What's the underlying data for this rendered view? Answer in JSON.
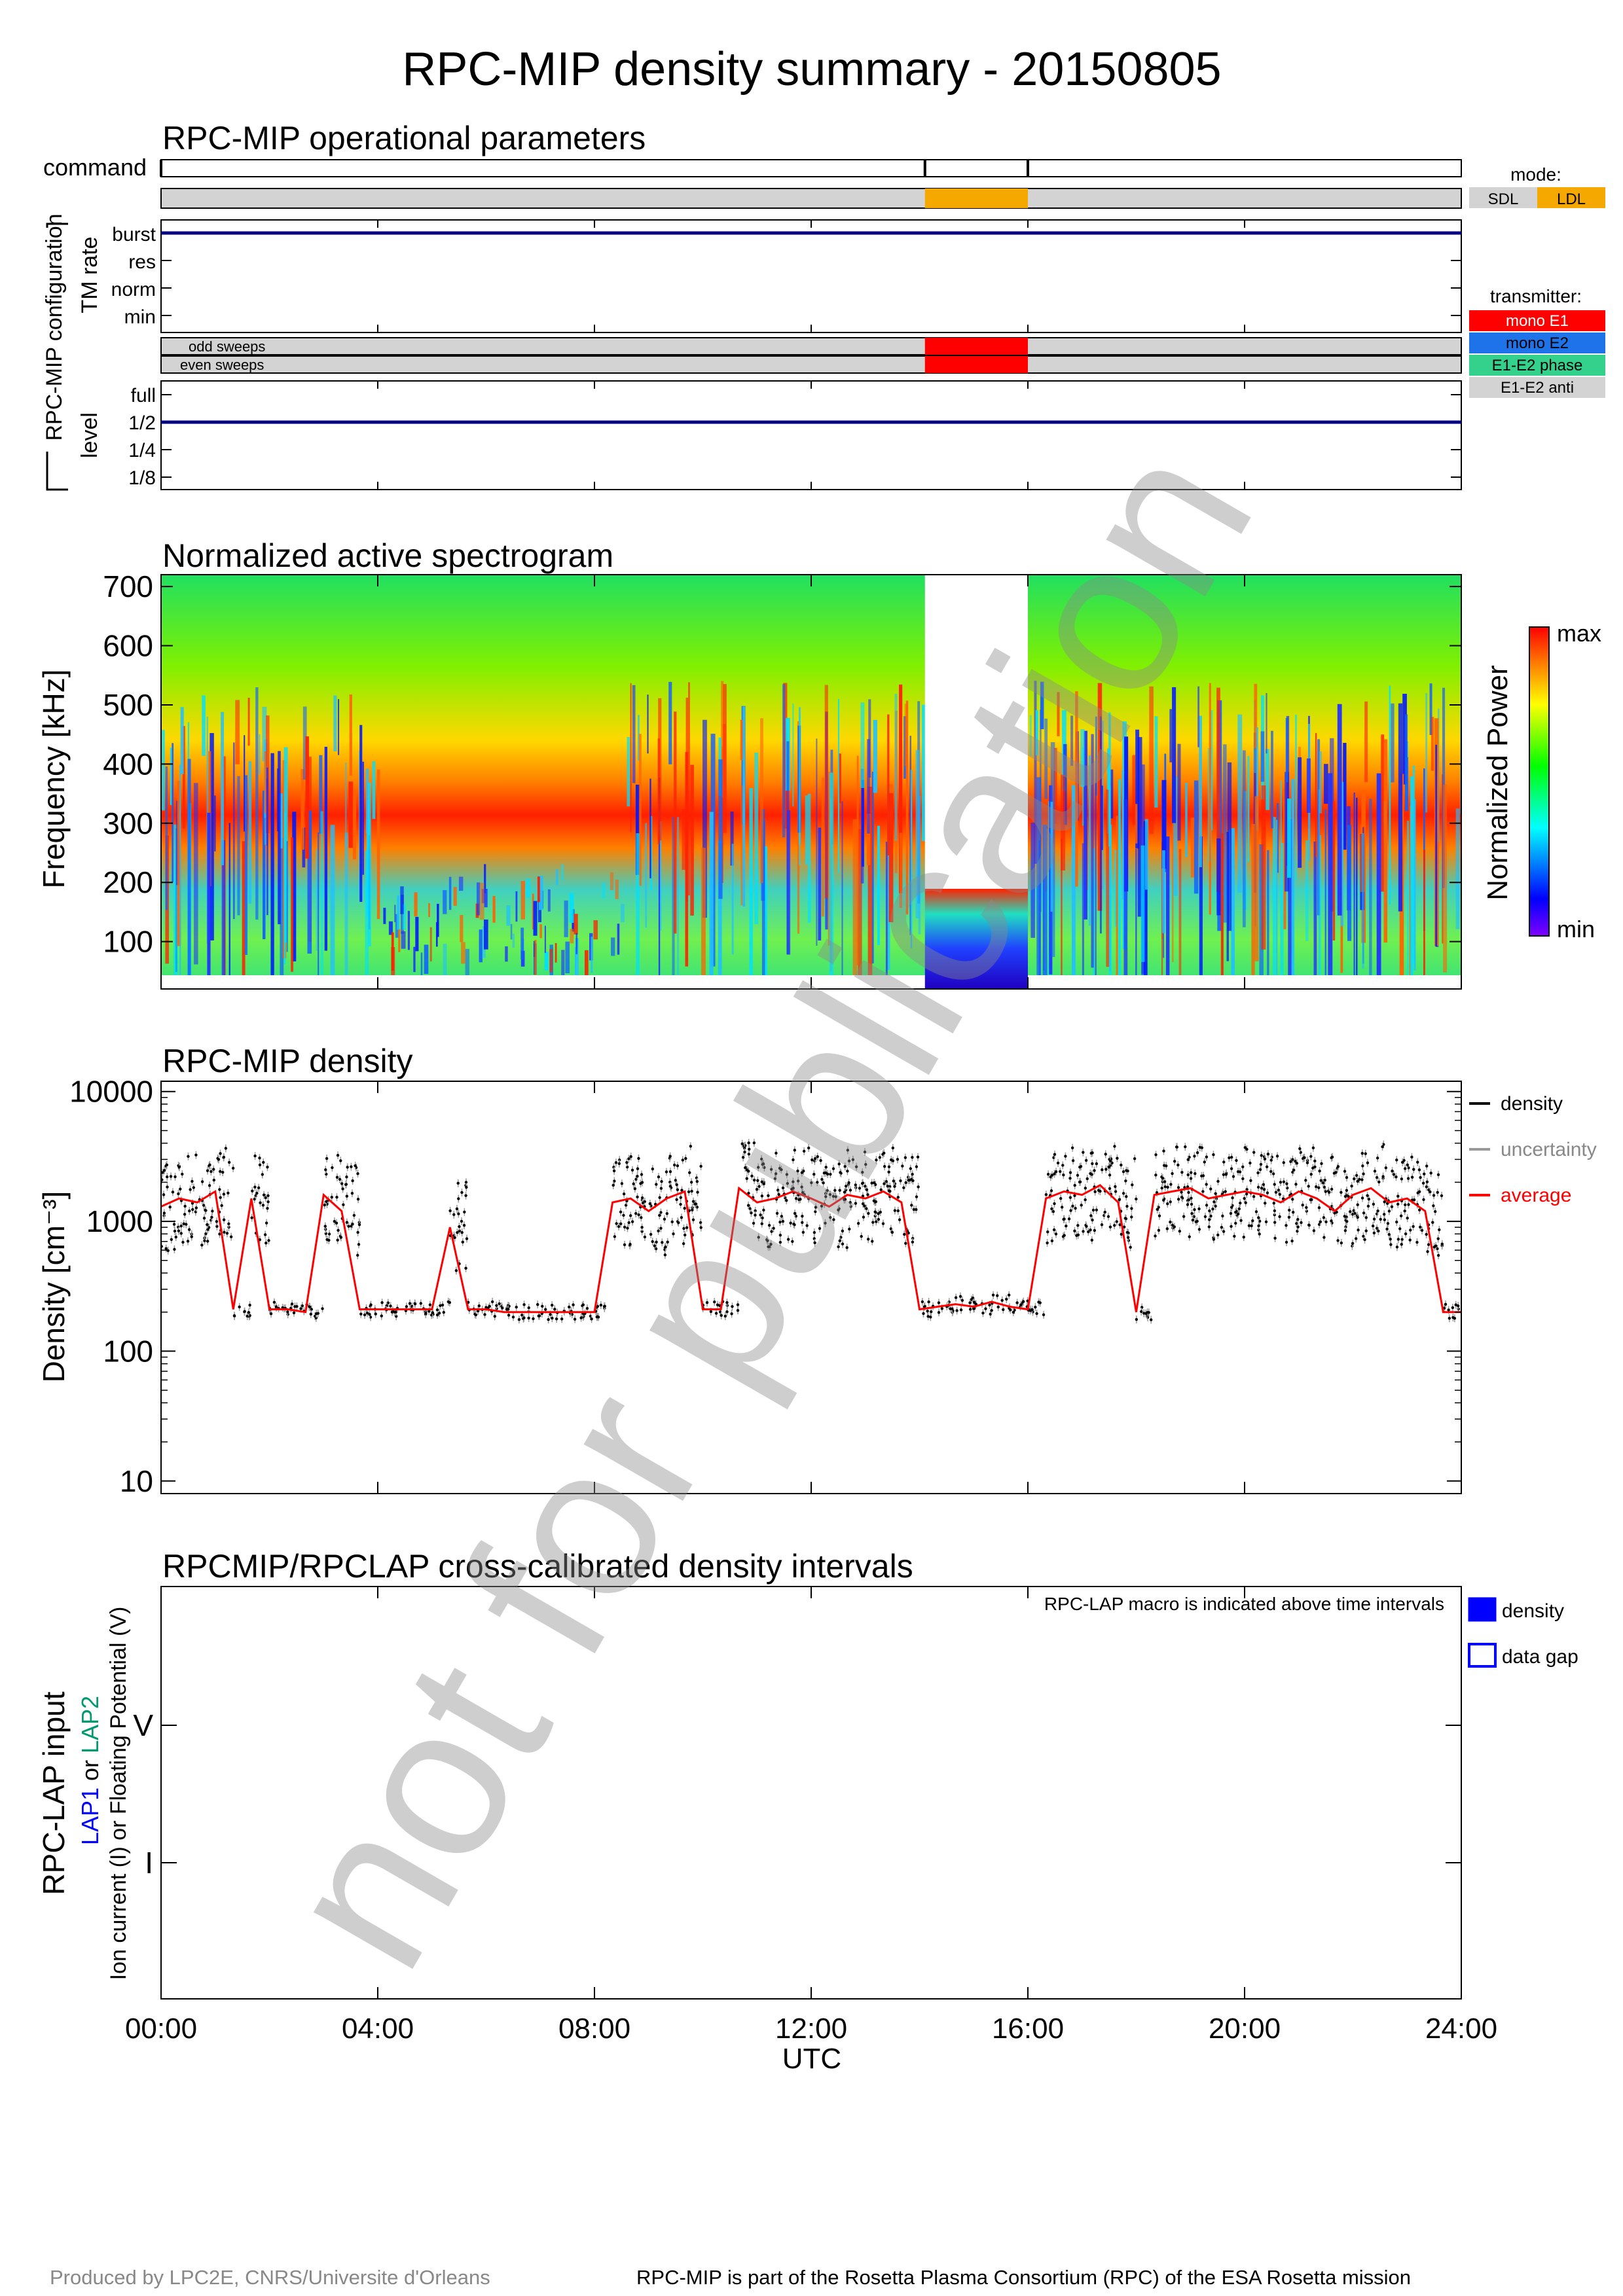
{
  "title": "RPC-MIP density summary - 20150805",
  "watermark": "not for publication",
  "footer": {
    "left": "Produced by LPC2E, CNRS/Universite d'Orleans",
    "right": "RPC-MIP is part of the Rosetta Plasma Consortium (RPC) of the ESA Rosetta mission"
  },
  "colors": {
    "axis": "#000000",
    "grey_fill": "#d3d3d3",
    "ldl": "#f5a800",
    "navy_line": "#000080",
    "mono_e1": "#ff0000",
    "mono_e2": "#1e73e8",
    "e1e2_phase": "#33d18c",
    "e1e2_anti": "#d3d3d3",
    "density": "#000000",
    "uncertainty": "#999999",
    "average": "#ff0000",
    "lap_fill": "#0000ff"
  },
  "panels": {
    "operational": {
      "title": "RPC-MIP operational parameters",
      "command_label": "command",
      "config_label": "RPC-MIP configuration",
      "tm_rate_label": "TM rate",
      "tm_levels": [
        "burst",
        "res",
        "norm",
        "min"
      ],
      "odd_sweeps_label": "odd sweeps",
      "even_sweeps_label": "even sweeps",
      "level_label": "level",
      "level_levels": [
        "full",
        "1/2",
        "1/4",
        "1/8"
      ],
      "mode_title": "mode:",
      "mode_items": [
        {
          "label": "SDL",
          "color": "#d3d3d3"
        },
        {
          "label": "LDL",
          "color": "#f5a800"
        }
      ],
      "transmitter_title": "transmitter:",
      "transmitter_items": [
        {
          "label": "mono E1",
          "color": "#ff0000"
        },
        {
          "label": "mono E2",
          "color": "#1e73e8"
        },
        {
          "label": "E1-E2 phase",
          "color": "#33d18c"
        },
        {
          "label": "E1-E2 anti",
          "color": "#d3d3d3"
        }
      ],
      "command_marks_hours": [
        0,
        14.1,
        16.0
      ],
      "ldl_interval_hours": [
        14.1,
        16.0
      ],
      "tm_rate_value": "burst",
      "level_value": "1/2"
    },
    "spectrogram": {
      "title": "Normalized active spectrogram",
      "ylabel": "Frequency [kHz]",
      "yticks": [
        100,
        200,
        300,
        400,
        500,
        600,
        700
      ],
      "colorbar_label": "Normalized Power",
      "colorbar_max": "max",
      "colorbar_min": "min",
      "gap_hours": [
        14.1,
        16.0
      ]
    },
    "density": {
      "title": "RPC-MIP density",
      "ylabel": "Density [cm⁻³]",
      "yticks": [
        "10",
        "100",
        "1000",
        "10000"
      ],
      "legend": [
        {
          "label": "density",
          "color": "#000000"
        },
        {
          "label": "uncertainty",
          "color": "#999999"
        },
        {
          "label": "average",
          "color": "#ff0000"
        }
      ]
    },
    "lap": {
      "title": "RPCMIP/RPCLAP cross-calibrated density intervals",
      "note": "RPC-LAP macro is indicated above time intervals",
      "ylabel_main": "RPC-LAP input",
      "ylabel_lap1": "LAP1",
      "ylabel_or": " or ",
      "ylabel_lap2": "LAP2",
      "ylabel_sub": "Ion current (I) or Floating Potential (V)",
      "yticks": [
        "V",
        "I"
      ],
      "legend_density": "density",
      "legend_gap": "data gap"
    }
  },
  "chart_data": [
    {
      "type": "line",
      "title": "RPC-MIP density",
      "xlabel": "UTC",
      "ylabel": "Density [cm⁻³]",
      "yscale": "log",
      "ylim": [
        8,
        12000
      ],
      "xlim": [
        "00:00",
        "24:00"
      ],
      "xticks": [
        "00:00",
        "04:00",
        "08:00",
        "12:00",
        "16:00",
        "20:00",
        "24:00"
      ],
      "legend_position": "right",
      "series": [
        {
          "name": "average",
          "x": [
            "00:00",
            "00:20",
            "00:40",
            "01:00",
            "01:20",
            "01:40",
            "02:00",
            "02:20",
            "02:40",
            "03:00",
            "03:20",
            "03:40",
            "04:00",
            "04:20",
            "04:40",
            "05:00",
            "05:20",
            "05:40",
            "06:00",
            "06:20",
            "06:40",
            "07:00",
            "07:20",
            "07:40",
            "08:00",
            "08:20",
            "08:40",
            "09:00",
            "09:20",
            "09:40",
            "10:00",
            "10:20",
            "10:40",
            "11:00",
            "11:20",
            "11:40",
            "12:00",
            "12:20",
            "12:40",
            "13:00",
            "13:20",
            "13:40",
            "14:00",
            "14:20",
            "14:40",
            "15:00",
            "15:20",
            "15:40",
            "16:00",
            "16:20",
            "16:40",
            "17:00",
            "17:20",
            "17:40",
            "18:00",
            "18:20",
            "18:40",
            "19:00",
            "19:20",
            "19:40",
            "20:00",
            "20:20",
            "20:40",
            "21:00",
            "21:20",
            "21:40",
            "22:00",
            "22:20",
            "22:40",
            "23:00",
            "23:20",
            "23:40"
          ],
          "values": [
            1300,
            1500,
            1400,
            1700,
            210,
            1500,
            210,
            210,
            200,
            1600,
            1200,
            210,
            210,
            210,
            210,
            210,
            900,
            210,
            210,
            200,
            200,
            200,
            200,
            200,
            200,
            1400,
            1500,
            1200,
            1500,
            1700,
            210,
            210,
            1800,
            1400,
            1500,
            1700,
            1500,
            1300,
            1600,
            1500,
            1700,
            1400,
            210,
            220,
            230,
            220,
            240,
            220,
            210,
            1500,
            1700,
            1600,
            1900,
            1400,
            200,
            1600,
            1700,
            1800,
            1500,
            1600,
            1700,
            1600,
            1400,
            1700,
            1500,
            1200,
            1600,
            1800,
            1400,
            1500,
            1200,
            200
          ]
        }
      ]
    },
    {
      "type": "heatmap",
      "title": "Normalized active spectrogram",
      "ylabel": "Frequency [kHz]",
      "ylim": [
        20,
        720
      ],
      "xlim": [
        "00:00",
        "24:00"
      ],
      "colorbar": [
        "min",
        "max"
      ],
      "data_gap": [
        "14:06",
        "16:00"
      ]
    }
  ]
}
